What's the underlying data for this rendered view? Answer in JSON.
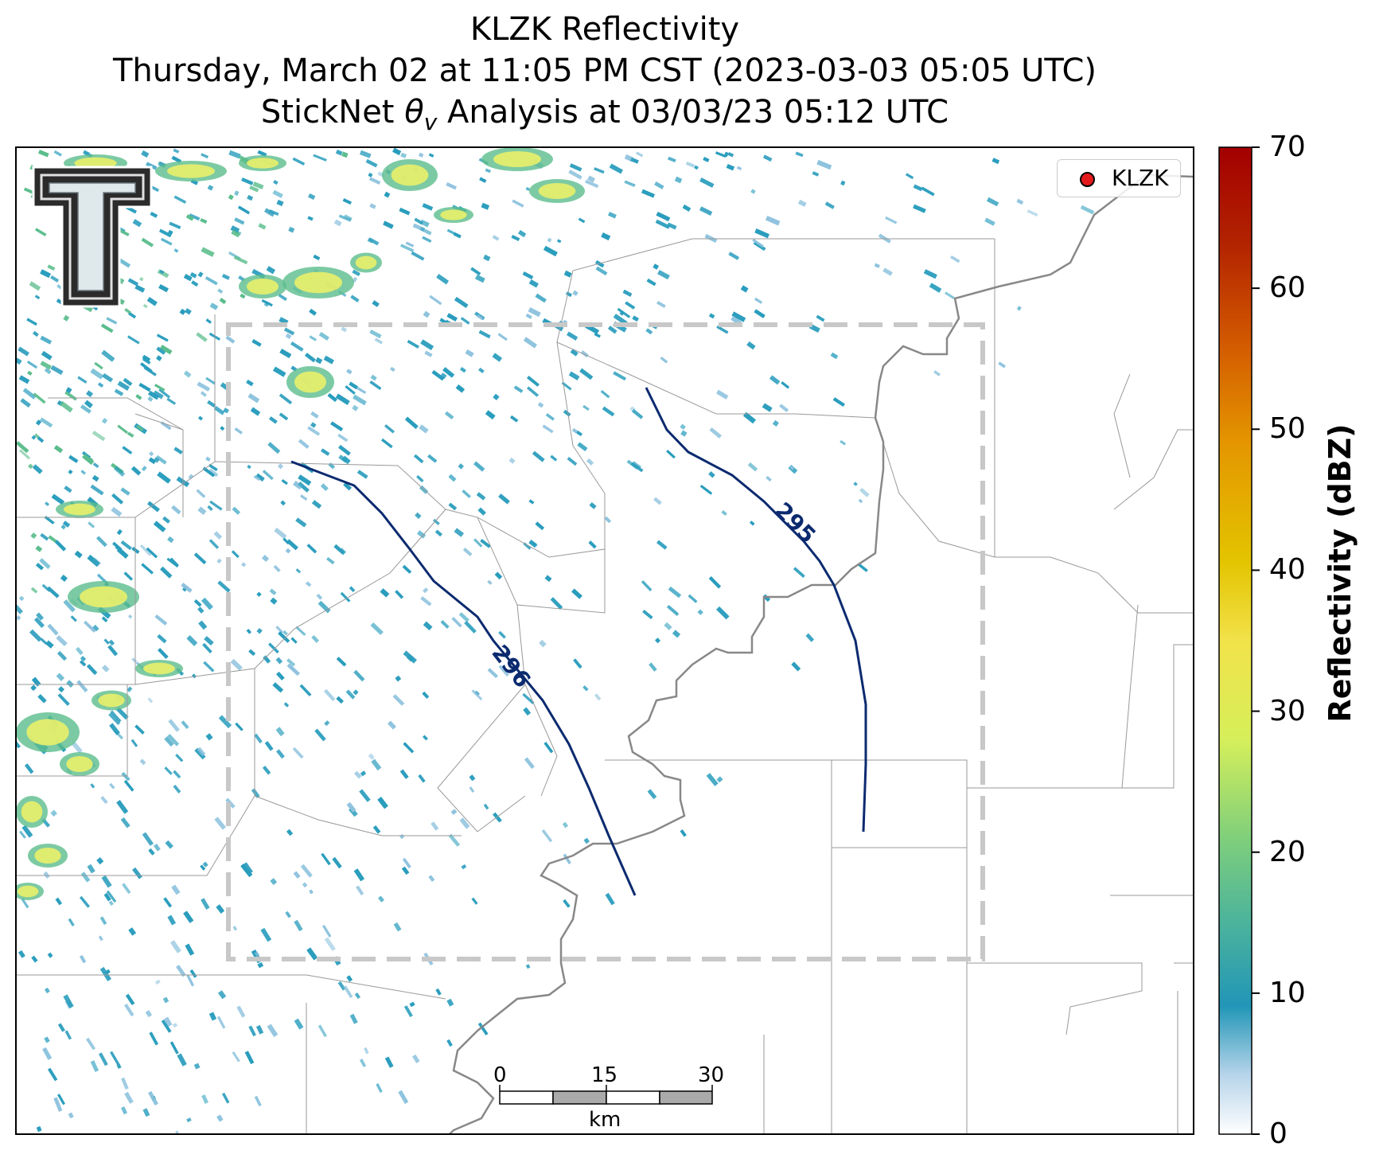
{
  "titles": {
    "line1": "KLZK Reflectivity",
    "line2": "Thursday, March 02 at 11:05 PM CST (2023-03-03 05:05 UTC)",
    "line3": "StickNet θv Analysis at 03/03/23 05:12 UTC"
  },
  "legend": {
    "label": "KLZK",
    "marker_color": "#e31a1c"
  },
  "contours": [
    {
      "label": "296",
      "color": "#0b2a6f"
    },
    {
      "label": "295",
      "color": "#0b2a6f"
    }
  ],
  "colorbar": {
    "label": "Reflectivity (dBZ)",
    "ticks": [
      "0",
      "10",
      "20",
      "30",
      "40",
      "50",
      "60",
      "70"
    ],
    "min": 0,
    "max": 70,
    "colors": [
      "#ffffff",
      "#b7d4ea",
      "#2196b7",
      "#4fb59a",
      "#7fcf7b",
      "#d6ef5a",
      "#f2e24a",
      "#e3c400",
      "#e49600",
      "#d35a00",
      "#b32400",
      "#a30000"
    ]
  },
  "scalebar": {
    "ticks": [
      "0",
      "15",
      "30"
    ],
    "unit": "km"
  },
  "logo": {
    "icon": "texas-tech-double-t-logo"
  },
  "colors": {
    "state_border": "#888888",
    "county_lines": "#999999",
    "domain_box": "#c8c8c8",
    "echo_light": "#2a9dbd",
    "echo_moderate": "#5bbd8c",
    "echo_strong": "#e9f06a"
  }
}
